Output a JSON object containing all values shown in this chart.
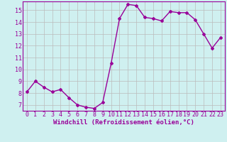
{
  "x": [
    0,
    1,
    2,
    3,
    4,
    5,
    6,
    7,
    8,
    9,
    10,
    11,
    12,
    13,
    14,
    15,
    16,
    17,
    18,
    19,
    20,
    21,
    22,
    23
  ],
  "y": [
    8.1,
    9.0,
    8.5,
    8.1,
    8.3,
    7.6,
    7.0,
    6.8,
    6.7,
    7.2,
    10.5,
    14.3,
    15.5,
    15.4,
    14.4,
    14.3,
    14.1,
    14.9,
    14.8,
    14.8,
    14.2,
    13.0,
    11.8,
    12.7
  ],
  "line_color": "#990099",
  "marker": "D",
  "marker_size": 2.0,
  "bg_color": "#cff0f0",
  "grid_color": "#bbbbbb",
  "xlabel": "Windchill (Refroidissement éolien,°C)",
  "ylabel": "",
  "title": "",
  "xlim": [
    -0.5,
    23.5
  ],
  "ylim": [
    6.5,
    15.75
  ],
  "yticks": [
    7,
    8,
    9,
    10,
    11,
    12,
    13,
    14,
    15
  ],
  "xticks": [
    0,
    1,
    2,
    3,
    4,
    5,
    6,
    7,
    8,
    9,
    10,
    11,
    12,
    13,
    14,
    15,
    16,
    17,
    18,
    19,
    20,
    21,
    22,
    23
  ],
  "xlabel_fontsize": 6.5,
  "tick_fontsize": 6.0,
  "line_width": 1.0
}
